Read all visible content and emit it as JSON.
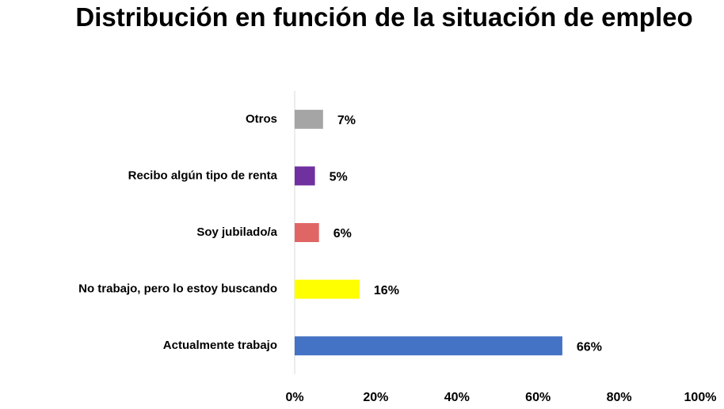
{
  "chart_data": {
    "type": "barh",
    "title": "Distribución en función de la situación de empleo",
    "categories": [
      "Otros",
      "Recibo algún tipo de renta",
      "Soy jubilado/a",
      "No trabajo, pero lo estoy buscando",
      "Actualmente trabajo"
    ],
    "values": [
      7,
      5,
      6,
      16,
      66
    ],
    "value_labels": [
      "7%",
      "5%",
      "6%",
      "16%",
      "66%"
    ],
    "colors": [
      "#a5a5a5",
      "#7030a0",
      "#e06666",
      "#ffff00",
      "#4472c4"
    ],
    "xlim": [
      0,
      100
    ],
    "xticks": [
      {
        "value": 0,
        "label": "0%"
      },
      {
        "value": 20,
        "label": "20%"
      },
      {
        "value": 40,
        "label": "40%"
      },
      {
        "value": 60,
        "label": "60%"
      },
      {
        "value": 80,
        "label": "80%"
      },
      {
        "value": 100,
        "label": "100%"
      }
    ],
    "grid": false
  }
}
